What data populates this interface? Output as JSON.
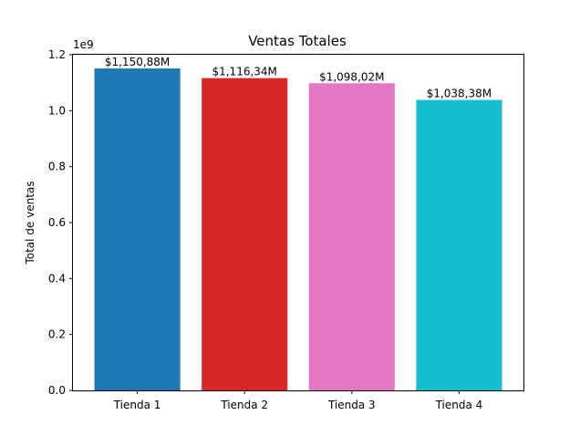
{
  "chart_data": {
    "type": "bar",
    "title": "Ventas Totales",
    "xlabel": "",
    "ylabel": "Total de ventas",
    "y_offset_label": "1e9",
    "categories": [
      "Tienda 1",
      "Tienda 2",
      "Tienda 3",
      "Tienda 4"
    ],
    "values": [
      1.15088,
      1.11634,
      1.09802,
      1.03838
    ],
    "value_labels": [
      "$1,150,88M",
      "$1,116,34M",
      "$1,098,02M",
      "$1,038,38M"
    ],
    "colors": [
      "#1f77b4",
      "#d62728",
      "#e377c2",
      "#17becf"
    ],
    "ylim": [
      0,
      1.2
    ],
    "yticks": [
      "0.0",
      "0.2",
      "0.4",
      "0.6",
      "0.8",
      "1.0",
      "1.2"
    ],
    "grid": false,
    "legend": "none"
  }
}
